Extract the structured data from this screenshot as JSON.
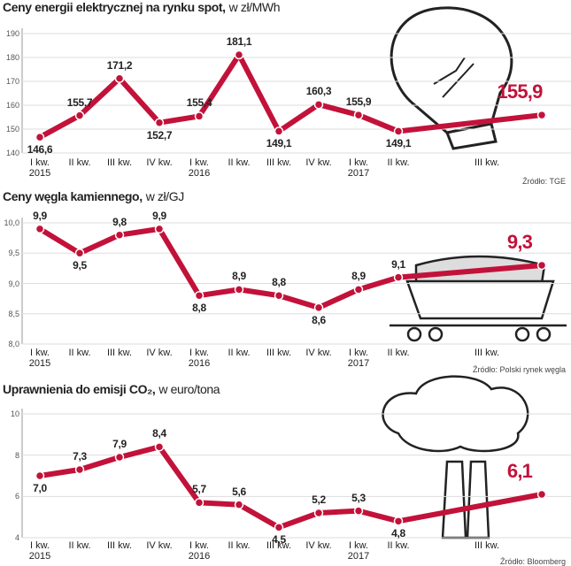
{
  "chart_data": [
    {
      "type": "line",
      "title": "Ceny energii elektrycznej na rynku spot,",
      "subtitle": "w zł/MWh",
      "source": "Źródło: TGE",
      "categories": [
        "I kw.\n2015",
        "II kw.",
        "III kw.",
        "IV kw.",
        "I kw.\n2016",
        "II kw.",
        "III kw.",
        "IV kw.",
        "I kw.\n2017",
        "II kw.",
        "III kw."
      ],
      "values": [
        146.6,
        155.7,
        171.2,
        152.7,
        155.4,
        181.1,
        149.1,
        160.3,
        155.9,
        149.1,
        155.9
      ],
      "value_labels": [
        "146,6",
        "155,7",
        "171,2",
        "152,7",
        "155,4",
        "181,1",
        "149,1",
        "160,3",
        "155,9",
        "149,1",
        "155,9"
      ],
      "color": "#c2123a",
      "ylim": [
        140,
        190
      ],
      "yticks": [
        140,
        150,
        160,
        170,
        180,
        190
      ],
      "grid": true
    },
    {
      "type": "line",
      "title": "Ceny węgla kamiennego,",
      "subtitle": "w zł/GJ",
      "source": "Źródło: Polski rynek węgla",
      "categories": [
        "I kw.\n2015",
        "II kw.",
        "III kw.",
        "IV kw.",
        "I kw.\n2016",
        "II kw.",
        "III kw.",
        "IV kw.",
        "I kw.\n2017",
        "II kw.",
        "III kw."
      ],
      "values": [
        9.9,
        9.5,
        9.8,
        9.9,
        8.8,
        8.9,
        8.8,
        8.6,
        8.9,
        9.1,
        9.3
      ],
      "value_labels": [
        "9,9",
        "9,5",
        "9,8",
        "9,9",
        "8,8",
        "8,9",
        "8,8",
        "8,6",
        "8,9",
        "9,1",
        "9,3"
      ],
      "color": "#c2123a",
      "ylim": [
        8,
        10
      ],
      "yticks": [
        {
          "value": 8,
          "label": "8,0"
        },
        {
          "value": 8.5,
          "label": "8,5"
        },
        {
          "value": 9,
          "label": "9,0"
        },
        {
          "value": 9.5,
          "label": "9,5"
        },
        {
          "value": 10,
          "label": "10,0"
        }
      ],
      "grid": true
    },
    {
      "type": "line",
      "title": "Uprawnienia do emisji CO₂,",
      "subtitle": "w euro/tona",
      "source": "Źródło: Bloomberg",
      "categories": [
        "I kw.\n2015",
        "II kw.",
        "III kw.",
        "IV kw.",
        "I kw.\n2016",
        "II kw.",
        "III kw.",
        "IV kw.",
        "I kw.\n2017",
        "II kw.",
        "III kw."
      ],
      "values": [
        7.0,
        7.3,
        7.9,
        8.4,
        5.7,
        5.6,
        4.5,
        5.2,
        5.3,
        4.8,
        6.1
      ],
      "value_labels": [
        "7,0",
        "7,3",
        "7,9",
        "8,4",
        "5,7",
        "5,6",
        "4,5",
        "5,2",
        "5,3",
        "4,8",
        "6,1"
      ],
      "color": "#c2123a",
      "ylim": [
        4,
        10
      ],
      "yticks": [
        4,
        6,
        8,
        10
      ],
      "grid": true
    }
  ]
}
